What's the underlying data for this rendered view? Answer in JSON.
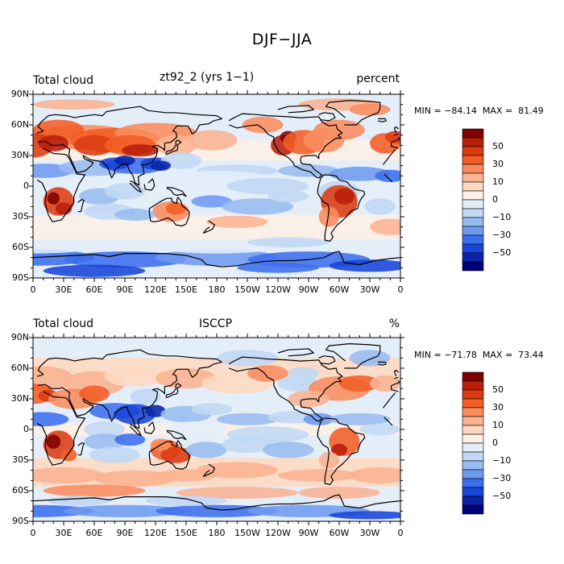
{
  "figure_title": "DJF−JJA",
  "x_tick_labels": [
    "0",
    "30E",
    "60E",
    "90E",
    "120E",
    "150E",
    "180",
    "150W",
    "120W",
    "90W",
    "60W",
    "30W",
    "0"
  ],
  "y_tick_labels": [
    "90N",
    "60N",
    "30N",
    "0",
    "30S",
    "60S",
    "90S"
  ],
  "colorbar_labels": [
    "50",
    "30",
    "10",
    "0",
    "−10",
    "−30",
    "−50"
  ],
  "colorbar_colors": [
    "#7f0000",
    "#b81f0a",
    "#dc3b12",
    "#f25d26",
    "#f98c5d",
    "#fbb391",
    "#fdd9c2",
    "#fdf0e6",
    "#e3eef9",
    "#c0d8f4",
    "#98bcef",
    "#6e9bf0",
    "#3d6fed",
    "#1844d8",
    "#0a24a8",
    "#00007a"
  ],
  "panels": [
    {
      "left_label": "Total cloud",
      "center_label": "zt92_2 (yrs 1−1)",
      "right_label": "percent",
      "min_label": "MIN =",
      "min_value": "−84.14",
      "max_label": "MAX =",
      "max_value": "81.49"
    },
    {
      "left_label": "Total cloud",
      "center_label": "ISCCP",
      "right_label": "%",
      "min_label": "MIN =",
      "min_value": "−71.78",
      "max_label": "MAX =",
      "max_value": "73.44"
    }
  ]
}
